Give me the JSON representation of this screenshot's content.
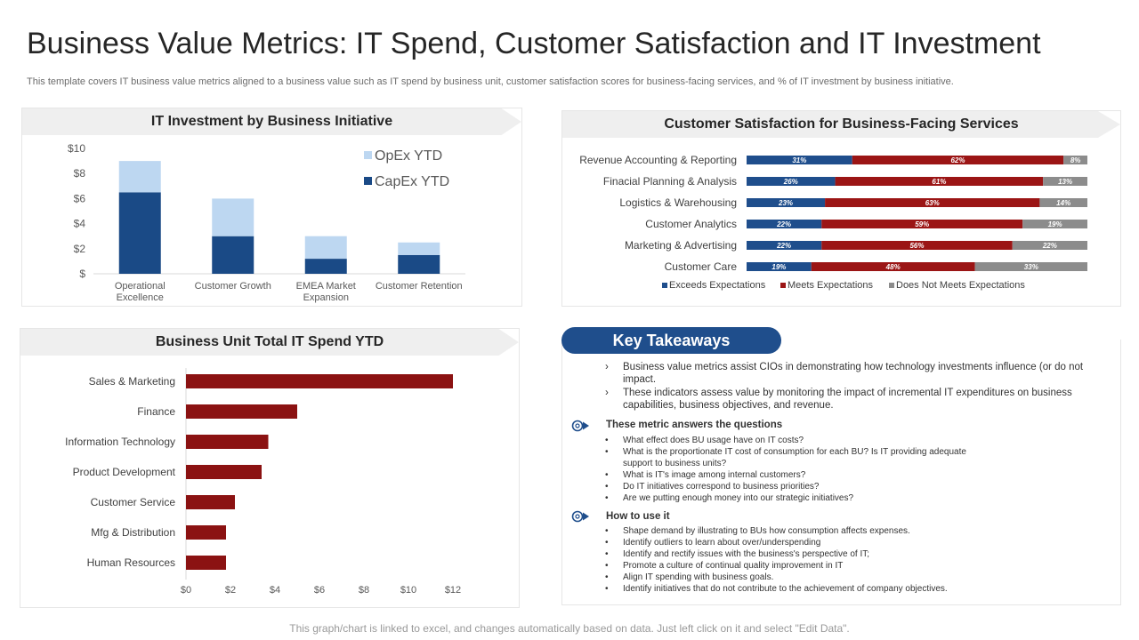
{
  "title": "Business Value Metrics: IT Spend, Customer Satisfaction and IT Investment",
  "subtitle": "This template covers IT business value metrics aligned to a business value such as IT spend by business unit, customer satisfaction scores for business-facing services, and % of IT investment by business initiative.",
  "footer": "This graph/chart is linked to excel, and changes automatically based on data. Just left click on it and select \"Edit Data\".",
  "colors": {
    "opex": "#bdd7f1",
    "capex": "#1a4a86",
    "exceeds": "#1f4e8c",
    "meets": "#9b1515",
    "not_meets": "#8c8c8c",
    "spend_bar": "#8b1212",
    "pill": "#1f4e8c"
  },
  "chart_data": [
    {
      "type": "bar",
      "stacked": true,
      "title": "IT Investment by Business Initiative",
      "categories": [
        "Operational Excellence",
        "Customer Growth",
        "EMEA Market Expansion",
        "Customer Retention"
      ],
      "series": [
        {
          "name": "CapEx YTD",
          "values": [
            6.5,
            3.0,
            1.2,
            1.5
          ]
        },
        {
          "name": "OpEx YTD",
          "values": [
            2.5,
            3.0,
            1.8,
            1.0
          ]
        }
      ],
      "legend": [
        "OpEx YTD",
        "CapEx YTD"
      ],
      "ylim": [
        0,
        10
      ],
      "yticks": [
        "$10",
        "$8",
        "$6",
        "$4",
        "$2",
        "$"
      ]
    },
    {
      "type": "bar",
      "stacked": true,
      "orientation": "horizontal",
      "percent": true,
      "title": "Customer Satisfaction for Business-Facing Services",
      "categories": [
        "Revenue Accounting & Reporting",
        "Finacial Planning & Analysis",
        "Logistics & Warehousing",
        "Customer Analytics",
        "Marketing & Advertising",
        "Customer Care"
      ],
      "series": [
        {
          "name": "Exceeds Expectations",
          "values": [
            31,
            26,
            23,
            22,
            22,
            19
          ],
          "labels": [
            "31%",
            "26%",
            "23%",
            "22%",
            "22%",
            "19%"
          ]
        },
        {
          "name": "Meets Expectations",
          "values": [
            62,
            61,
            63,
            59,
            56,
            48
          ],
          "labels": [
            "62%",
            "61%",
            "63%",
            "59%",
            "56%",
            "48%"
          ]
        },
        {
          "name": "Does Not Meets Expectations",
          "values": [
            8,
            13,
            14,
            19,
            22,
            33
          ],
          "labels": [
            "8%",
            "13%",
            "14%",
            "19%",
            "22%",
            "33%"
          ]
        }
      ]
    },
    {
      "type": "bar",
      "orientation": "horizontal",
      "title": "Business Unit Total IT Spend YTD",
      "categories": [
        "Sales & Marketing",
        "Finance",
        "Information Technology",
        "Product Development",
        "Customer Service",
        "Mfg & Distribution",
        "Human Resources"
      ],
      "values": [
        12,
        5,
        3.7,
        3.4,
        2.2,
        1.8,
        1.8
      ],
      "xlim": [
        0,
        12
      ],
      "xticks": [
        "$0",
        "$2",
        "$4",
        "$6",
        "$8",
        "$10",
        "$12"
      ]
    }
  ],
  "takeaways": {
    "title": "Key Takeaways",
    "points": [
      "Business value metrics assist CIOs in demonstrating how technology investments influence (or do not impact.",
      "These indicators assess value by monitoring the impact of incremental IT expenditures on business capabilities, business objectives, and revenue."
    ],
    "questions_heading": "These metric answers the questions",
    "questions": [
      "What effect does BU usage have on IT costs?",
      "What is the proportionate IT cost of consumption for each BU? Is IT providing adequate support to business units?",
      "What is IT's image among internal customers?",
      "Do IT initiatives correspond to business priorities?",
      "Are we putting enough money into our strategic initiatives?"
    ],
    "howto_heading": "How to use it",
    "howto": [
      "Shape demand by illustrating to BUs how consumption affects expenses.",
      "Identify outliers to learn about over/underspending",
      "Identify and rectify issues with the business's perspective of IT;",
      "Promote a culture of continual quality improvement in IT",
      "Align IT spending with business goals.",
      "Identify initiatives that do not contribute to the achievement of company objectives."
    ]
  }
}
